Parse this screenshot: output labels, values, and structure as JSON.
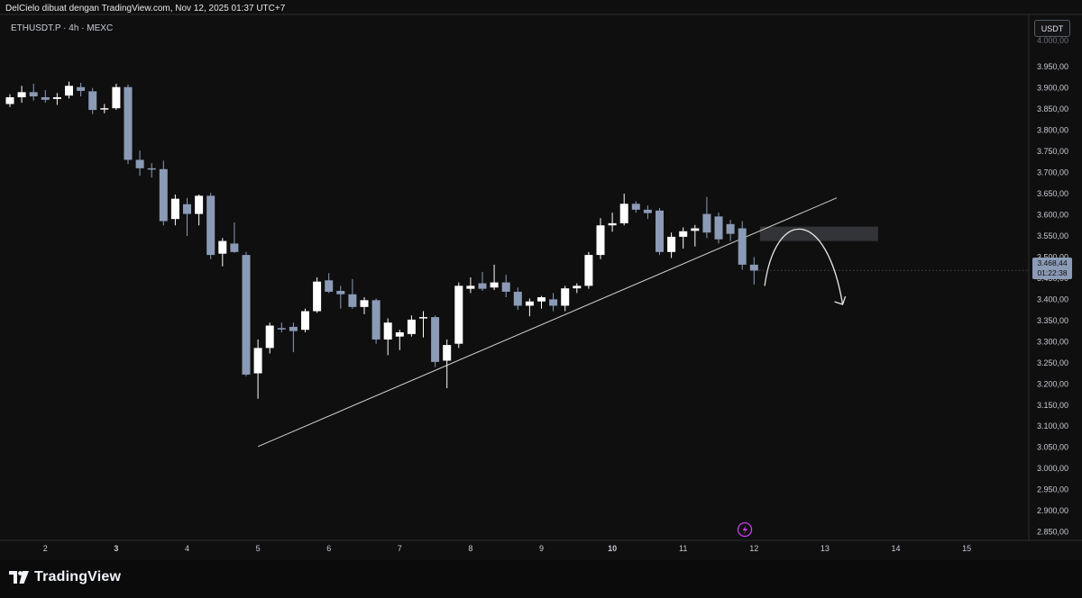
{
  "header": {
    "caption": "DelCielo dibuat dengan TradingView.com, Nov 12, 2025 01:37 UTC+7",
    "symbol_line": "ETHUSDT.P · 4h · MEXC"
  },
  "currency_label": "USDT",
  "price_tag": {
    "price": "3.468,44",
    "countdown": "01:22:38"
  },
  "brand": {
    "name": "TradingView",
    "logo_icon": "tradingview-logo-icon"
  },
  "alert_icon": "lightning-icon",
  "colors": {
    "background": "#0f0f10",
    "up": "#ffffff",
    "down": "#8b9bb6",
    "accent": "#c840e9",
    "line": "#d0d0d0"
  },
  "chart_data": {
    "type": "candlestick",
    "timeframe": "4h",
    "ylim": [
      2830,
      4010
    ],
    "y_ticks": [
      {
        "v": 2850,
        "label": "2.850,00"
      },
      {
        "v": 2900,
        "label": "2.900,00"
      },
      {
        "v": 2950,
        "label": "2.950,00"
      },
      {
        "v": 3000,
        "label": "3.000,00"
      },
      {
        "v": 3050,
        "label": "3.050,00"
      },
      {
        "v": 3100,
        "label": "3.100,00"
      },
      {
        "v": 3150,
        "label": "3.150,00"
      },
      {
        "v": 3200,
        "label": "3.200,00"
      },
      {
        "v": 3250,
        "label": "3.250,00"
      },
      {
        "v": 3300,
        "label": "3.300,00"
      },
      {
        "v": 3350,
        "label": "3.350,00"
      },
      {
        "v": 3400,
        "label": "3.400,00"
      },
      {
        "v": 3450,
        "label": "3.450,00"
      },
      {
        "v": 3500,
        "label": "3.500,00"
      },
      {
        "v": 3550,
        "label": "3.550,00"
      },
      {
        "v": 3600,
        "label": "3.600,00"
      },
      {
        "v": 3650,
        "label": "3.650,00"
      },
      {
        "v": 3700,
        "label": "3.700,00"
      },
      {
        "v": 3750,
        "label": "3.750,00"
      },
      {
        "v": 3800,
        "label": "3.800,00"
      },
      {
        "v": 3850,
        "label": "3.850,00"
      },
      {
        "v": 3900,
        "label": "3.900,00"
      },
      {
        "v": 3950,
        "label": "3.950,00"
      }
    ],
    "x_ticks": [
      {
        "i": 3,
        "label": "2",
        "bold": false
      },
      {
        "i": 9,
        "label": "3",
        "bold": true
      },
      {
        "i": 15,
        "label": "4",
        "bold": false
      },
      {
        "i": 21,
        "label": "5",
        "bold": false
      },
      {
        "i": 27,
        "label": "6",
        "bold": false
      },
      {
        "i": 33,
        "label": "7",
        "bold": false
      },
      {
        "i": 39,
        "label": "8",
        "bold": false
      },
      {
        "i": 45,
        "label": "9",
        "bold": false
      },
      {
        "i": 51,
        "label": "10",
        "bold": true
      },
      {
        "i": 57,
        "label": "11",
        "bold": false
      },
      {
        "i": 63,
        "label": "12",
        "bold": false
      },
      {
        "i": 69,
        "label": "13",
        "bold": false
      },
      {
        "i": 75,
        "label": "14",
        "bold": false
      },
      {
        "i": 81,
        "label": "15",
        "bold": false
      }
    ],
    "candles": [
      {
        "o": 3862,
        "h": 3885,
        "l": 3855,
        "c": 3878
      },
      {
        "o": 3878,
        "h": 3905,
        "l": 3865,
        "c": 3890
      },
      {
        "o": 3890,
        "h": 3910,
        "l": 3870,
        "c": 3880
      },
      {
        "o": 3878,
        "h": 3895,
        "l": 3865,
        "c": 3872
      },
      {
        "o": 3874,
        "h": 3888,
        "l": 3860,
        "c": 3878
      },
      {
        "o": 3882,
        "h": 3915,
        "l": 3875,
        "c": 3905
      },
      {
        "o": 3902,
        "h": 3912,
        "l": 3880,
        "c": 3893
      },
      {
        "o": 3892,
        "h": 3900,
        "l": 3838,
        "c": 3848
      },
      {
        "o": 3850,
        "h": 3862,
        "l": 3840,
        "c": 3852
      },
      {
        "o": 3852,
        "h": 3910,
        "l": 3848,
        "c": 3902
      },
      {
        "o": 3902,
        "h": 3908,
        "l": 3720,
        "c": 3730
      },
      {
        "o": 3730,
        "h": 3752,
        "l": 3692,
        "c": 3710
      },
      {
        "o": 3710,
        "h": 3722,
        "l": 3688,
        "c": 3708
      },
      {
        "o": 3708,
        "h": 3728,
        "l": 3575,
        "c": 3585
      },
      {
        "o": 3590,
        "h": 3648,
        "l": 3575,
        "c": 3638
      },
      {
        "o": 3625,
        "h": 3640,
        "l": 3550,
        "c": 3602
      },
      {
        "o": 3602,
        "h": 3648,
        "l": 3575,
        "c": 3645
      },
      {
        "o": 3645,
        "h": 3652,
        "l": 3495,
        "c": 3505
      },
      {
        "o": 3508,
        "h": 3545,
        "l": 3478,
        "c": 3538
      },
      {
        "o": 3532,
        "h": 3582,
        "l": 3510,
        "c": 3512
      },
      {
        "o": 3505,
        "h": 3512,
        "l": 3218,
        "c": 3222
      },
      {
        "o": 3225,
        "h": 3305,
        "l": 3165,
        "c": 3285
      },
      {
        "o": 3285,
        "h": 3345,
        "l": 3272,
        "c": 3338
      },
      {
        "o": 3332,
        "h": 3345,
        "l": 3322,
        "c": 3330
      },
      {
        "o": 3335,
        "h": 3345,
        "l": 3275,
        "c": 3325
      },
      {
        "o": 3328,
        "h": 3378,
        "l": 3322,
        "c": 3372
      },
      {
        "o": 3372,
        "h": 3452,
        "l": 3368,
        "c": 3442
      },
      {
        "o": 3445,
        "h": 3462,
        "l": 3415,
        "c": 3418
      },
      {
        "o": 3420,
        "h": 3432,
        "l": 3378,
        "c": 3412
      },
      {
        "o": 3412,
        "h": 3448,
        "l": 3378,
        "c": 3382
      },
      {
        "o": 3382,
        "h": 3405,
        "l": 3365,
        "c": 3398
      },
      {
        "o": 3398,
        "h": 3402,
        "l": 3295,
        "c": 3305
      },
      {
        "o": 3305,
        "h": 3355,
        "l": 3268,
        "c": 3345
      },
      {
        "o": 3312,
        "h": 3328,
        "l": 3280,
        "c": 3322
      },
      {
        "o": 3318,
        "h": 3362,
        "l": 3312,
        "c": 3352
      },
      {
        "o": 3355,
        "h": 3372,
        "l": 3310,
        "c": 3358
      },
      {
        "o": 3358,
        "h": 3362,
        "l": 3240,
        "c": 3252
      },
      {
        "o": 3255,
        "h": 3305,
        "l": 3190,
        "c": 3292
      },
      {
        "o": 3295,
        "h": 3440,
        "l": 3285,
        "c": 3432
      },
      {
        "o": 3425,
        "h": 3452,
        "l": 3415,
        "c": 3432
      },
      {
        "o": 3438,
        "h": 3465,
        "l": 3420,
        "c": 3425
      },
      {
        "o": 3428,
        "h": 3482,
        "l": 3422,
        "c": 3440
      },
      {
        "o": 3440,
        "h": 3458,
        "l": 3405,
        "c": 3418
      },
      {
        "o": 3418,
        "h": 3428,
        "l": 3375,
        "c": 3385
      },
      {
        "o": 3385,
        "h": 3402,
        "l": 3360,
        "c": 3395
      },
      {
        "o": 3395,
        "h": 3408,
        "l": 3378,
        "c": 3405
      },
      {
        "o": 3400,
        "h": 3415,
        "l": 3372,
        "c": 3385
      },
      {
        "o": 3385,
        "h": 3432,
        "l": 3372,
        "c": 3426
      },
      {
        "o": 3426,
        "h": 3438,
        "l": 3415,
        "c": 3432
      },
      {
        "o": 3432,
        "h": 3512,
        "l": 3425,
        "c": 3505
      },
      {
        "o": 3505,
        "h": 3592,
        "l": 3495,
        "c": 3575
      },
      {
        "o": 3575,
        "h": 3605,
        "l": 3560,
        "c": 3580
      },
      {
        "o": 3580,
        "h": 3650,
        "l": 3575,
        "c": 3626
      },
      {
        "o": 3626,
        "h": 3632,
        "l": 3605,
        "c": 3612
      },
      {
        "o": 3612,
        "h": 3622,
        "l": 3590,
        "c": 3604
      },
      {
        "o": 3610,
        "h": 3616,
        "l": 3505,
        "c": 3512
      },
      {
        "o": 3512,
        "h": 3558,
        "l": 3498,
        "c": 3548
      },
      {
        "o": 3548,
        "h": 3570,
        "l": 3520,
        "c": 3561
      },
      {
        "o": 3562,
        "h": 3576,
        "l": 3525,
        "c": 3568
      },
      {
        "o": 3602,
        "h": 3642,
        "l": 3545,
        "c": 3558
      },
      {
        "o": 3596,
        "h": 3605,
        "l": 3532,
        "c": 3542
      },
      {
        "o": 3578,
        "h": 3588,
        "l": 3538,
        "c": 3555
      },
      {
        "o": 3568,
        "h": 3585,
        "l": 3470,
        "c": 3482
      },
      {
        "o": 3482,
        "h": 3500,
        "l": 3435,
        "c": 3468
      }
    ],
    "trendline": {
      "from": {
        "i": 21,
        "v": 3052
      },
      "to": {
        "i": 70,
        "v": 3640
      }
    },
    "zone": {
      "from_i": 63.5,
      "to_i": 73.5,
      "top": 3572,
      "bottom": 3538
    },
    "projection_arrow": {
      "start": {
        "i": 63.9,
        "v": 3432
      },
      "peak": {
        "i": 66.8,
        "v": 3556
      },
      "end": {
        "i": 70.5,
        "v": 3388
      }
    },
    "last_price": 3468.44
  }
}
